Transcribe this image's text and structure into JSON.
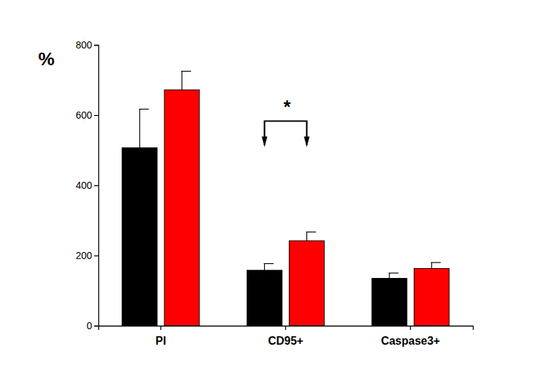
{
  "chart_data": {
    "type": "bar",
    "y_label": "%",
    "categories": [
      "PI",
      "CD95+",
      "Caspase3+"
    ],
    "series": [
      {
        "color": "#000000",
        "values": [
          507,
          158,
          135
        ],
        "errors": [
          110,
          19,
          15
        ]
      },
      {
        "color": "#ff0000",
        "values": [
          672,
          242,
          163
        ],
        "errors": [
          53,
          25,
          17
        ]
      }
    ],
    "ylim": [
      0,
      800
    ],
    "yticks": [
      0,
      200,
      400,
      600,
      800
    ],
    "annotations": [
      {
        "text": "*",
        "category": "CD95+"
      }
    ]
  }
}
